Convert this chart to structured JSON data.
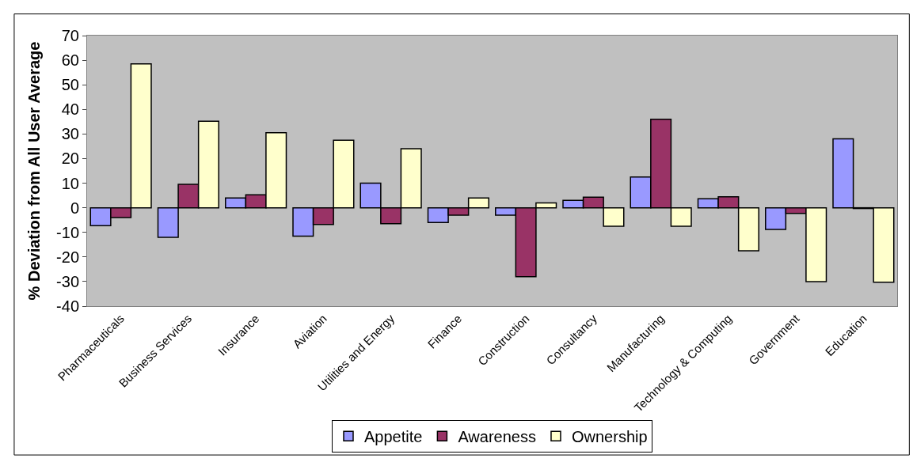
{
  "chart_data": {
    "type": "bar",
    "ylabel": "% Deviation from All User Average",
    "categories": [
      "Pharmaceuticals",
      "Business Services",
      "Insurance",
      "Aviation",
      "Utilities and Energy",
      "Finance",
      "Construction",
      "Consultancy",
      "Manufacturing",
      "Technology & Computing",
      "Government",
      "Education"
    ],
    "series": [
      {
        "name": "Appetite",
        "color": "#9999ff",
        "values": [
          -7.3,
          -12,
          4,
          -11.5,
          10,
          -6,
          -3,
          3,
          12.5,
          3.7,
          -8.8,
          28
        ]
      },
      {
        "name": "Awareness",
        "color": "#993366",
        "values": [
          -4,
          9.5,
          5.3,
          -6.8,
          -6.5,
          -3,
          -28,
          4.3,
          36,
          4.5,
          -2.3,
          -0.3
        ]
      },
      {
        "name": "Ownership",
        "color": "#ffffcc",
        "values": [
          58.5,
          35.2,
          30.5,
          27.5,
          24,
          4,
          2,
          -7.5,
          -7.5,
          -17.5,
          -30,
          -30.3
        ]
      }
    ],
    "ylim": [
      -40,
      70
    ],
    "yticks": [
      -40,
      -30,
      -20,
      -10,
      0,
      10,
      20,
      30,
      40,
      50,
      60,
      70
    ],
    "grid": false,
    "legend": "bottom"
  }
}
